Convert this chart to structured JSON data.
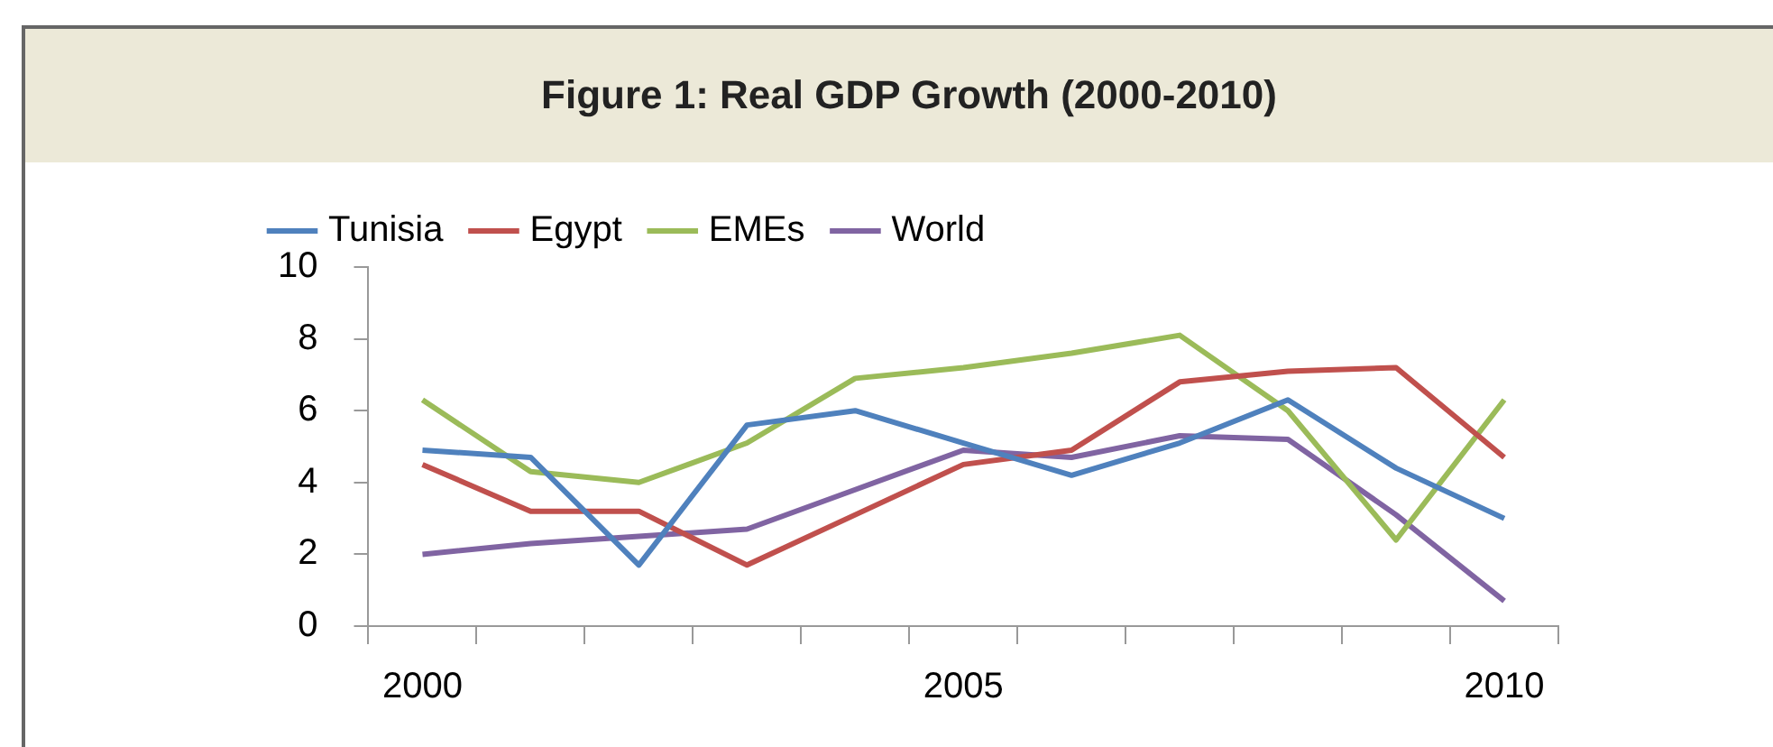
{
  "chart_data": {
    "type": "line",
    "title": "Figure 1: Real GDP Growth (2000-2010)",
    "categories": [
      "2000",
      null,
      null,
      null,
      null,
      "2005",
      null,
      null,
      null,
      null,
      "2010"
    ],
    "series": [
      {
        "name": "Tunisia",
        "color": "#4f81bd",
        "values": [
          4.9,
          4.7,
          1.7,
          5.6,
          6.0,
          5.1,
          4.2,
          5.1,
          6.3,
          4.4,
          3.0
        ]
      },
      {
        "name": "Egypt",
        "color": "#c0504d",
        "values": [
          4.5,
          3.2,
          3.2,
          1.7,
          3.1,
          4.5,
          4.9,
          6.8,
          7.1,
          7.2,
          4.7
        ]
      },
      {
        "name": "EMEs",
        "color": "#9bbb59",
        "values": [
          6.3,
          4.3,
          4.0,
          5.1,
          6.9,
          7.2,
          7.6,
          8.1,
          6.0,
          2.4,
          6.3
        ]
      },
      {
        "name": "World",
        "color": "#8064a2",
        "values": [
          2.0,
          2.3,
          2.5,
          2.7,
          3.8,
          4.9,
          4.7,
          5.3,
          5.2,
          3.1,
          0.7
        ]
      }
    ],
    "ylim": [
      0,
      10
    ],
    "yticks": [
      0,
      2,
      4,
      6,
      8,
      10
    ],
    "grid": false,
    "legend": "top left",
    "marker": "none",
    "line_style": "solid"
  }
}
